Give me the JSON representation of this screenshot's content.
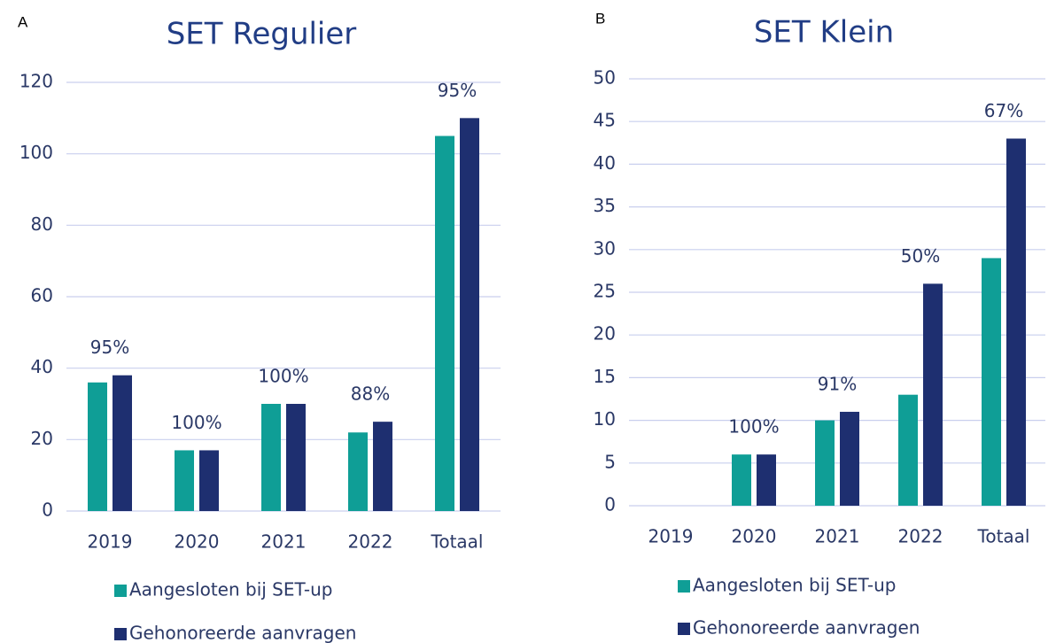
{
  "chart_data": [
    {
      "type": "bar",
      "label": "A",
      "title": "SET Regulier",
      "categories": [
        "2019",
        "2020",
        "2021",
        "2022",
        "Totaal"
      ],
      "series": [
        {
          "name": "Aangesloten bij SET-up",
          "color": "#0f9e96",
          "values": [
            36,
            17,
            30,
            22,
            105
          ]
        },
        {
          "name": "Gehonoreerde aanvragen",
          "color": "#1e2f70",
          "values": [
            38,
            17,
            30,
            25,
            110
          ]
        }
      ],
      "annotations": [
        "95%",
        "100%",
        "100%",
        "88%",
        "95%"
      ],
      "ylim": [
        0,
        120
      ],
      "yticks": [
        0,
        20,
        40,
        60,
        80,
        100,
        120
      ],
      "grid": true
    },
    {
      "type": "bar",
      "label": "B",
      "title": "SET Klein",
      "categories": [
        "2019",
        "2020",
        "2021",
        "2022",
        "Totaal"
      ],
      "series": [
        {
          "name": "Aangesloten bij SET-up",
          "color": "#0f9e96",
          "values": [
            0,
            6,
            10,
            13,
            29
          ]
        },
        {
          "name": "Gehonoreerde aanvragen",
          "color": "#1e2f70",
          "values": [
            0,
            6,
            11,
            26,
            43
          ]
        }
      ],
      "annotations": [
        null,
        "100%",
        "91%",
        "50%",
        "67%"
      ],
      "ylim": [
        0,
        50
      ],
      "yticks": [
        0,
        5,
        10,
        15,
        20,
        25,
        30,
        35,
        40,
        45,
        50
      ],
      "grid": true
    }
  ]
}
